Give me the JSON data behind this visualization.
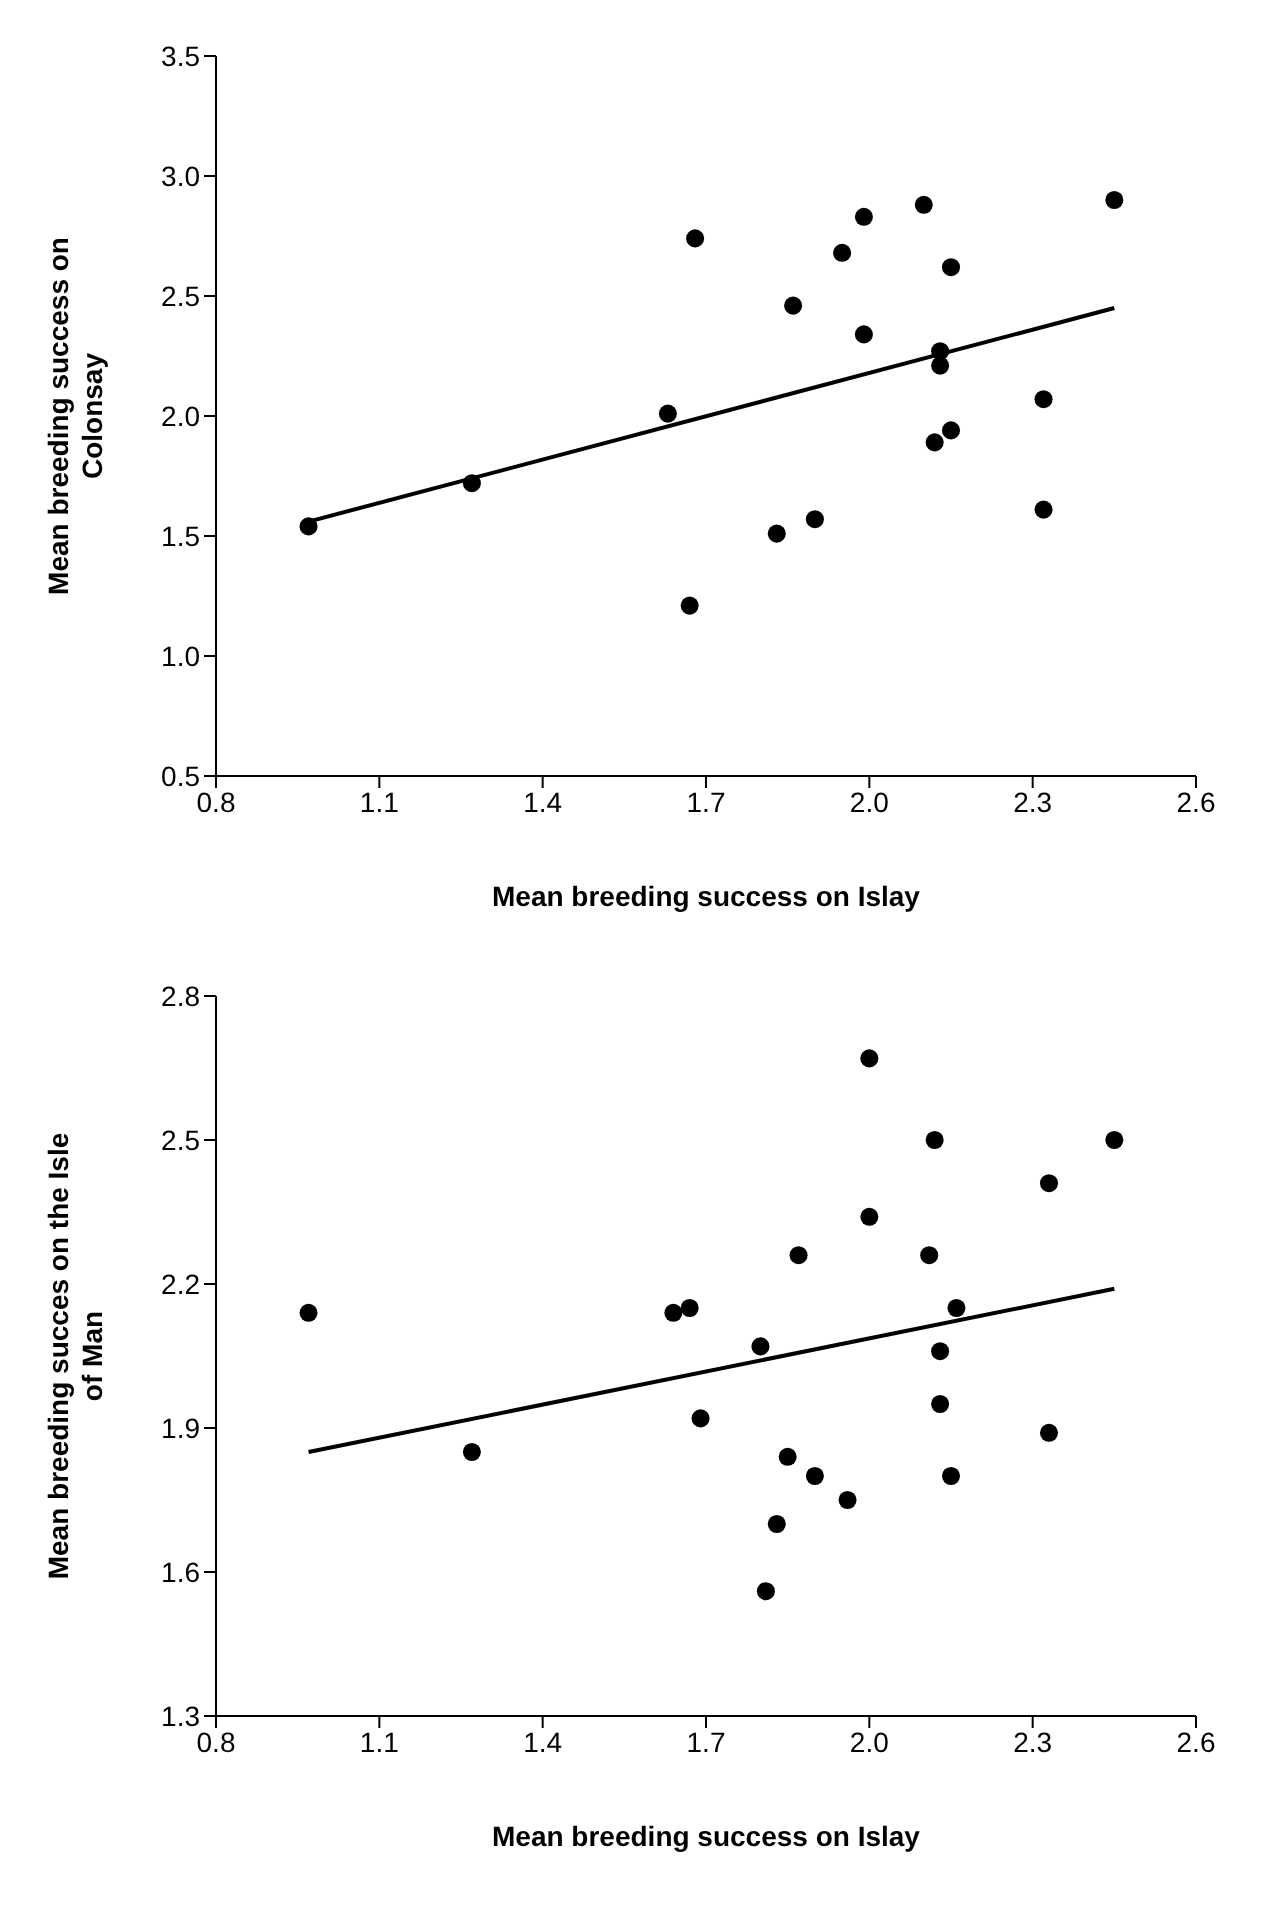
{
  "chart_data": [
    {
      "type": "scatter",
      "xlabel": "Mean breeding success on Islay",
      "ylabel": "Mean breeding success on Colonsay",
      "xlim": [
        0.8,
        2.6
      ],
      "xticks": [
        {
          "value": 0.8,
          "label": "0.8"
        },
        {
          "value": 1.1,
          "label": "1.1"
        },
        {
          "value": 1.4,
          "label": "1.4"
        },
        {
          "value": 1.7,
          "label": "1.7"
        },
        {
          "value": 2.0,
          "label": "2.0"
        },
        {
          "value": 2.3,
          "label": "2.3"
        },
        {
          "value": 2.6,
          "label": "2.6"
        }
      ],
      "ylim": [
        0.5,
        3.5
      ],
      "yticks": [
        0.5,
        {
          "value": 1.0,
          "label": "1.0"
        },
        1.5,
        {
          "value": 2.0,
          "label": "2.0"
        },
        2.5,
        {
          "value": 3.0,
          "label": "3.0"
        },
        3.5
      ],
      "grid": false,
      "legend": false,
      "series": [
        {
          "marker": "circle",
          "color": "#000000",
          "x": [
            0.97,
            1.27,
            1.63,
            1.68,
            1.67,
            1.86,
            1.83,
            1.9,
            1.95,
            1.99,
            1.99,
            2.1,
            2.12,
            2.13,
            2.13,
            2.15,
            2.15,
            2.32,
            2.32,
            2.45
          ],
          "values": [
            1.54,
            1.72,
            2.01,
            2.74,
            1.21,
            2.46,
            1.51,
            1.57,
            2.68,
            2.83,
            2.34,
            2.88,
            1.89,
            2.27,
            2.21,
            1.94,
            2.62,
            2.07,
            1.61,
            2.9
          ]
        },
        {
          "type": "line",
          "marker": "none",
          "color": "#000000",
          "x": [
            0.97,
            2.45
          ],
          "values": [
            1.56,
            2.45
          ]
        }
      ]
    },
    {
      "type": "scatter",
      "xlabel": "Mean breeding success on Islay",
      "ylabel": "Mean breeding succes on the Isle of Man",
      "xlim": [
        0.8,
        2.6
      ],
      "xticks": [
        {
          "value": 0.8,
          "label": "0.8"
        },
        {
          "value": 1.1,
          "label": "1.1"
        },
        {
          "value": 1.4,
          "label": "1.4"
        },
        {
          "value": 1.7,
          "label": "1.7"
        },
        {
          "value": 2.0,
          "label": "2.0"
        },
        {
          "value": 2.3,
          "label": "2.3"
        },
        {
          "value": 2.6,
          "label": "2.6"
        }
      ],
      "ylim": [
        1.3,
        2.8
      ],
      "yticks": [
        1.3,
        1.6,
        1.9,
        2.2,
        2.5,
        2.8
      ],
      "grid": false,
      "legend": false,
      "series": [
        {
          "marker": "circle",
          "color": "#000000",
          "x": [
            0.97,
            1.27,
            1.64,
            1.67,
            1.69,
            1.8,
            1.87,
            1.85,
            1.83,
            1.81,
            1.9,
            1.96,
            2.0,
            2.0,
            2.11,
            2.12,
            2.16,
            2.13,
            2.13,
            2.15,
            2.33,
            2.33,
            2.45
          ],
          "values": [
            2.14,
            1.85,
            2.14,
            2.15,
            1.92,
            2.07,
            2.26,
            1.84,
            1.7,
            1.56,
            1.8,
            1.75,
            2.67,
            2.34,
            2.26,
            2.5,
            2.15,
            2.06,
            1.95,
            1.8,
            2.41,
            1.89,
            2.5
          ]
        },
        {
          "type": "line",
          "marker": "none",
          "color": "#000000",
          "x": [
            0.97,
            2.45
          ],
          "values": [
            1.85,
            2.19
          ]
        }
      ]
    }
  ]
}
